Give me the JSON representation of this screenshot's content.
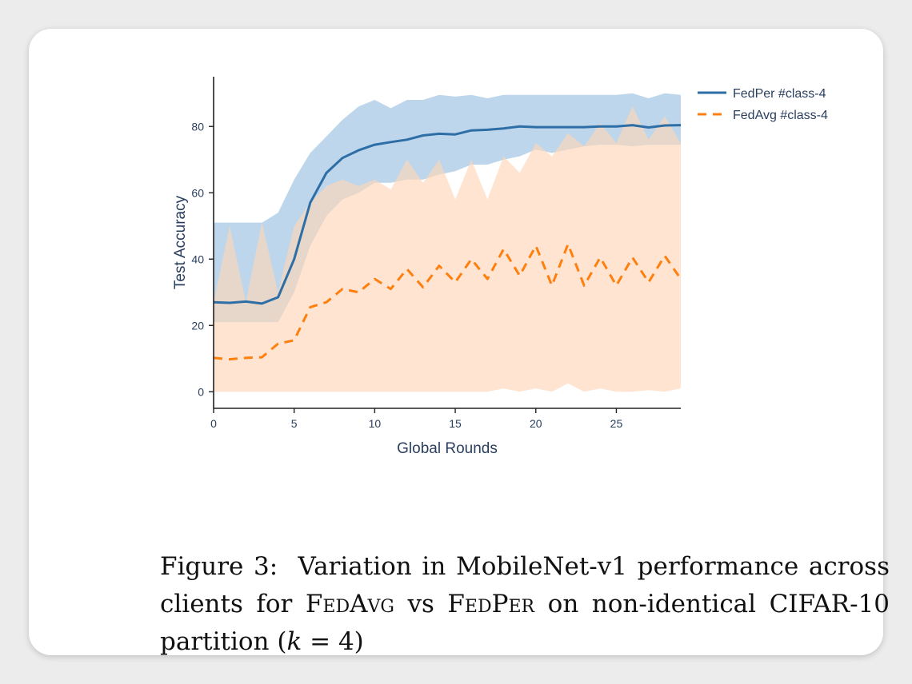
{
  "chart_data": {
    "type": "line",
    "title": "",
    "xlabel": "Global Rounds",
    "ylabel": "Test Accuracy",
    "xlim": [
      0,
      29
    ],
    "ylim": [
      -5,
      95
    ],
    "x_ticks": [
      0,
      5,
      10,
      15,
      20,
      25
    ],
    "y_ticks": [
      0,
      20,
      40,
      60,
      80
    ],
    "legend_position": "top-right",
    "grid": false,
    "x": [
      0,
      1,
      2,
      3,
      4,
      5,
      6,
      7,
      8,
      9,
      10,
      11,
      12,
      13,
      14,
      15,
      16,
      17,
      18,
      19,
      20,
      21,
      22,
      23,
      24,
      25,
      26,
      27,
      28,
      29
    ],
    "series": [
      {
        "name": "FedPer #class-4",
        "color": "#2e6ea6",
        "band_color": "#b3cfe8",
        "line_style": "solid",
        "values": [
          27,
          26.8,
          27.2,
          26.6,
          28.5,
          40,
          57,
          66,
          70.5,
          72.8,
          74.5,
          75.3,
          76,
          77.3,
          77.8,
          77.6,
          78.8,
          79,
          79.4,
          80,
          79.8,
          79.8,
          79.8,
          79.8,
          80,
          80,
          80.4,
          79.7,
          80.3,
          80.4
        ],
        "upper": [
          51,
          51,
          51,
          51,
          54,
          64,
          72,
          77,
          82,
          86,
          88,
          85.5,
          88,
          88,
          89.5,
          89,
          89.5,
          88.5,
          89.5,
          89.5,
          89.5,
          89.5,
          89.5,
          89.5,
          89.5,
          89.5,
          90,
          88.5,
          90,
          89.5
        ],
        "lower": [
          21,
          21,
          21,
          21,
          21,
          30,
          44,
          53,
          58,
          60,
          63,
          63,
          64,
          64,
          65.5,
          66.5,
          68.5,
          68.5,
          70,
          71,
          73,
          72,
          73,
          74,
          74.5,
          74.5,
          74,
          74.5,
          74.5,
          74.5
        ]
      },
      {
        "name": "FedAvg #class-4",
        "color": "#ff7f0e",
        "band_color": "#fdd5b8",
        "line_style": "dashed",
        "values": [
          10.2,
          9.8,
          10.2,
          10.4,
          14.5,
          15.5,
          25.5,
          27,
          31,
          30,
          34,
          31,
          37,
          31.5,
          38,
          33,
          40,
          34,
          43,
          35,
          44,
          32,
          44.5,
          32,
          40.5,
          32,
          40.5,
          33,
          41,
          34
        ],
        "upper": [
          27,
          50,
          27,
          51,
          30,
          50,
          57,
          62,
          64,
          62,
          64,
          61,
          70,
          63,
          70,
          58,
          70,
          58,
          71,
          66,
          75,
          71,
          78,
          74,
          81,
          75,
          86,
          76,
          83,
          75
        ],
        "lower": [
          0,
          0,
          0,
          0,
          0,
          0,
          0,
          0,
          0,
          0,
          0,
          0,
          0,
          0,
          0,
          0,
          0,
          0,
          1,
          0,
          1,
          0,
          2.5,
          0,
          1,
          0,
          0,
          0.5,
          0,
          1
        ]
      }
    ]
  },
  "caption": {
    "label": "Figure 3:",
    "text_1": "Variation in MobileNet-v1 performance across clients for",
    "method_a": "FedAvg",
    "vs": "vs",
    "method_b": "FedPer",
    "text_2": "on non-identical CIFAR-10 partition (",
    "k_var": "k",
    "eq": " = 4)"
  }
}
